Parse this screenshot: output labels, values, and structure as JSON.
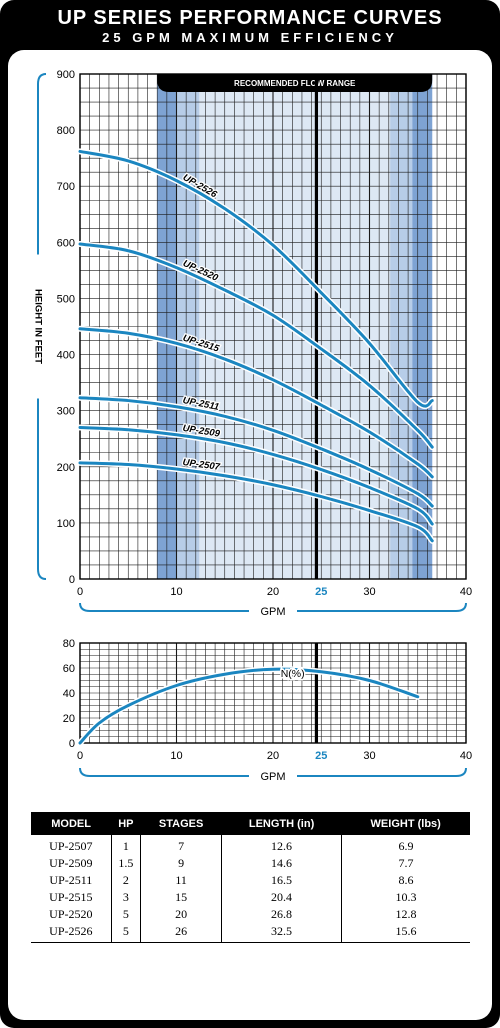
{
  "header": {
    "title": "UP SERIES PERFORMANCE CURVES",
    "subtitle": "25 GPM MAXIMUM EFFICIENCY"
  },
  "colors": {
    "curve": "#1b86c0",
    "band_light": "#dde8f4",
    "band_mid": "#b7cde8",
    "band_dark": "#7ea3d3",
    "accent_25": "#1b86c0",
    "frame": "#000000"
  },
  "chart_data": [
    {
      "type": "line",
      "banner": "RECOMMENDED FLOW RANGE",
      "xlabel": "GPM",
      "ylabel": "HEIGHT IN FEET",
      "xlim": [
        0,
        40
      ],
      "ylim": [
        0,
        900
      ],
      "xticks": [
        0,
        10,
        20,
        25,
        30,
        40
      ],
      "yticks": [
        0,
        100,
        200,
        300,
        400,
        500,
        600,
        700,
        800,
        900
      ],
      "grid": true,
      "recommended_range": [
        8,
        36.5
      ],
      "marker_line_x": 24.5,
      "series": [
        {
          "name": "UP-2526",
          "x": [
            0,
            5,
            10,
            15,
            20,
            25,
            30,
            35,
            36.5
          ],
          "values": [
            762,
            745,
            710,
            660,
            595,
            510,
            420,
            315,
            318
          ]
        },
        {
          "name": "UP-2520",
          "x": [
            0,
            5,
            10,
            15,
            20,
            25,
            30,
            35,
            36.5
          ],
          "values": [
            597,
            585,
            555,
            515,
            470,
            410,
            345,
            265,
            235
          ]
        },
        {
          "name": "UP-2515",
          "x": [
            0,
            5,
            10,
            15,
            20,
            25,
            30,
            35,
            36.5
          ],
          "values": [
            446,
            438,
            420,
            392,
            355,
            310,
            262,
            205,
            182
          ]
        },
        {
          "name": "UP-2511",
          "x": [
            0,
            5,
            10,
            15,
            20,
            25,
            30,
            35,
            36.5
          ],
          "values": [
            323,
            318,
            307,
            290,
            265,
            232,
            195,
            152,
            130
          ]
        },
        {
          "name": "UP-2509",
          "x": [
            0,
            5,
            10,
            15,
            20,
            25,
            30,
            35,
            36.5
          ],
          "values": [
            270,
            266,
            257,
            243,
            222,
            195,
            163,
            125,
            98
          ]
        },
        {
          "name": "UP-2507",
          "x": [
            0,
            5,
            10,
            15,
            20,
            25,
            30,
            35,
            36.5
          ],
          "values": [
            207,
            204,
            196,
            184,
            168,
            147,
            122,
            93,
            68
          ]
        }
      ]
    },
    {
      "type": "line",
      "xlabel": "GPM",
      "xlim": [
        0,
        40
      ],
      "ylim": [
        0,
        80
      ],
      "xticks": [
        0,
        10,
        20,
        25,
        30,
        40
      ],
      "yticks": [
        0,
        20,
        40,
        60,
        80
      ],
      "grid": true,
      "marker_line_x": 24.5,
      "series": [
        {
          "name": "N(%)",
          "x": [
            0,
            2,
            5,
            10,
            15,
            20,
            25,
            30,
            35
          ],
          "values": [
            0,
            16,
            30,
            46,
            55,
            59,
            57,
            50,
            37
          ]
        }
      ]
    }
  ],
  "table": {
    "headers": [
      "MODEL",
      "HP",
      "STAGES",
      "LENGTH (in)",
      "WEIGHT (lbs)"
    ],
    "rows": [
      [
        "UP-2507",
        "1",
        "7",
        "12.6",
        "6.9"
      ],
      [
        "UP-2509",
        "1.5",
        "9",
        "14.6",
        "7.7"
      ],
      [
        "UP-2511",
        "2",
        "11",
        "16.5",
        "8.6"
      ],
      [
        "UP-2515",
        "3",
        "15",
        "20.4",
        "10.3"
      ],
      [
        "UP-2520",
        "5",
        "20",
        "26.8",
        "12.8"
      ],
      [
        "UP-2526",
        "5",
        "26",
        "32.5",
        "15.6"
      ]
    ]
  }
}
